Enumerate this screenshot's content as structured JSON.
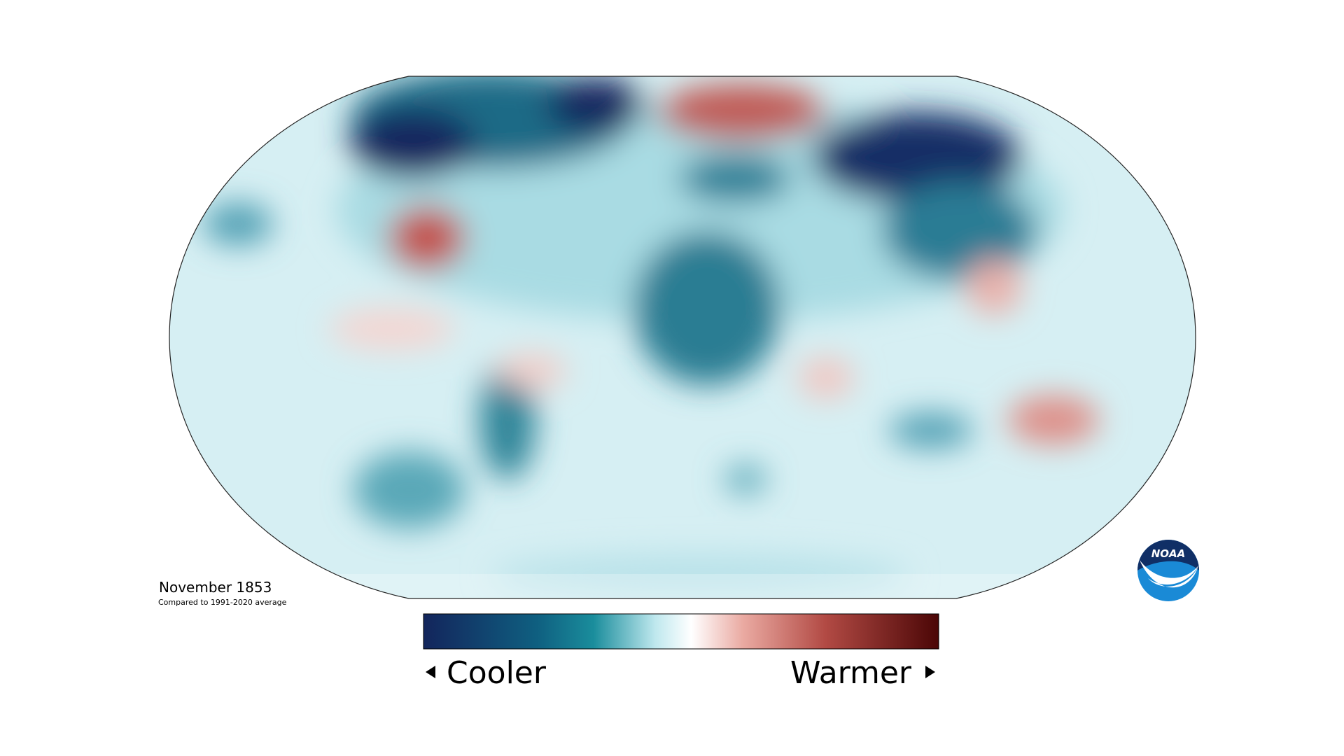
{
  "map": {
    "title": "November 1853",
    "subtitle": "Compared to 1991-2020 average"
  },
  "legend": {
    "low_label": "Cooler",
    "high_label": "Warmer"
  },
  "logo": {
    "text": "NOAA"
  }
}
